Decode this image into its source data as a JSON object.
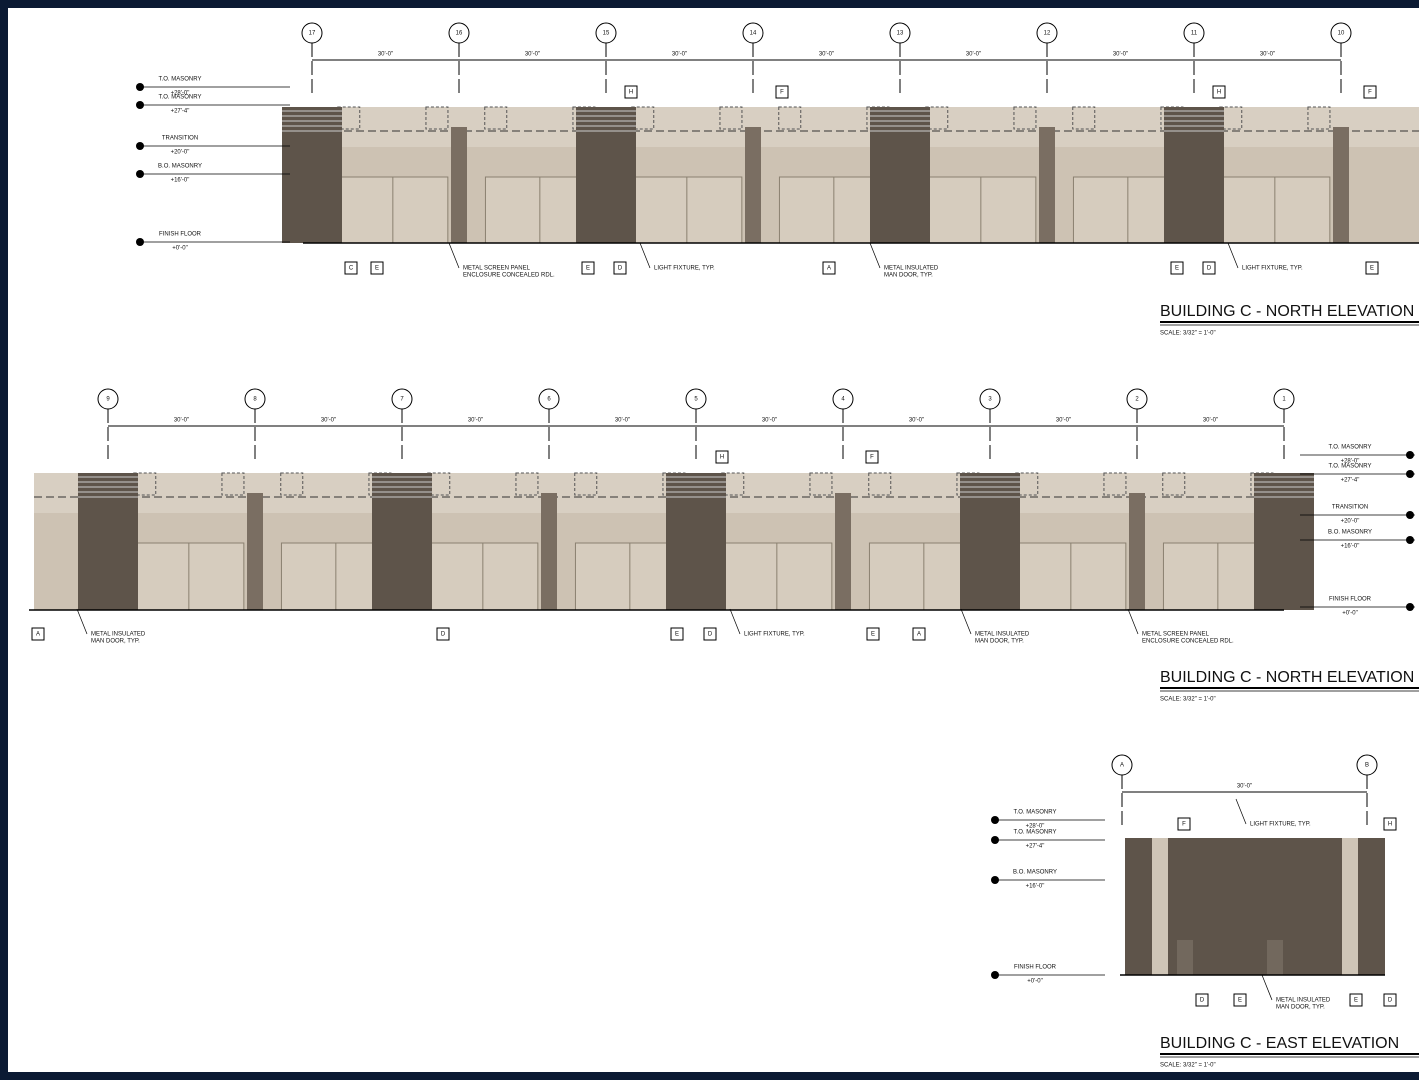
{
  "drawings": [
    {
      "title": "BUILDING C - NORTH ELEVATION",
      "scale": "SCALE: 3/32\" = 1'-0\"",
      "grid_labels": [
        "17",
        "16",
        "15",
        "14",
        "13",
        "12",
        "11",
        "10"
      ],
      "dimensions": [
        "30'-0\"",
        "30'-0\"",
        "30'-0\"",
        "30'-0\"",
        "30'-0\"",
        "30'-0\"",
        "30'-0\""
      ],
      "levels": [
        {
          "name": "T.O. MASONRY",
          "elevation": "+28'-0\""
        },
        {
          "name": "T.O. MASONRY",
          "elevation": "+27'-4\""
        },
        {
          "name": "TRANSITION",
          "elevation": "+20'-0\""
        },
        {
          "name": "B.O. MASONRY",
          "elevation": "+16'-0\""
        },
        {
          "name": "FINISH FLOOR",
          "elevation": "+0'-0\""
        }
      ],
      "keynotes": [
        "H",
        "F",
        "H",
        "F",
        "C",
        "E",
        "E",
        "D",
        "A",
        "E",
        "D",
        "E"
      ],
      "callouts": [
        [
          "METAL SCREEN PANEL",
          "ENCLOSURE CONCEALED RDL."
        ],
        [
          "LIGHT FIXTURE, TYP."
        ],
        [
          "METAL INSULATED",
          "MAN DOOR, TYP."
        ],
        [
          "LIGHT FIXTURE, TYP."
        ]
      ]
    },
    {
      "title": "BUILDING C - NORTH ELEVATION",
      "scale": "SCALE: 3/32\" = 1'-0\"",
      "grid_labels": [
        "9",
        "8",
        "7",
        "6",
        "5",
        "4",
        "3",
        "2",
        "1"
      ],
      "dimensions": [
        "30'-0\"",
        "30'-0\"",
        "30'-0\"",
        "30'-0\"",
        "30'-0\"",
        "30'-0\"",
        "30'-0\"",
        "30'-0\""
      ],
      "levels": [
        {
          "name": "T.O. MASONRY",
          "elevation": "+28'-0\""
        },
        {
          "name": "T.O. MASONRY",
          "elevation": "+27'-4\""
        },
        {
          "name": "TRANSITION",
          "elevation": "+20'-0\""
        },
        {
          "name": "B.O. MASONRY",
          "elevation": "+16'-0\""
        },
        {
          "name": "FINISH FLOOR",
          "elevation": "+0'-0\""
        }
      ],
      "keynotes": [
        "H",
        "F",
        "A",
        "D",
        "E",
        "D",
        "E",
        "A"
      ],
      "callouts": [
        [
          "METAL INSULATED",
          "MAN DOOR, TYP."
        ],
        [
          "LIGHT FIXTURE, TYP."
        ],
        [
          "METAL INSULATED",
          "MAN DOOR, TYP."
        ],
        [
          "METAL SCREEN PANEL",
          "ENCLOSURE CONCEALED RDL."
        ]
      ]
    },
    {
      "title": "BUILDING C - EAST ELEVATION",
      "scale": "SCALE: 3/32\" = 1'-0\"",
      "grid_labels": [
        "A",
        "B"
      ],
      "dimensions": [
        "30'-0\""
      ],
      "levels": [
        {
          "name": "T.O. MASONRY",
          "elevation": "+28'-0\""
        },
        {
          "name": "T.O. MASONRY",
          "elevation": "+27'-4\""
        },
        {
          "name": "B.O. MASONRY",
          "elevation": "+16'-0\""
        },
        {
          "name": "FINISH FLOOR",
          "elevation": "+0'-0\""
        }
      ],
      "keynotes": [
        "F",
        "H",
        "D",
        "E",
        "E",
        "D"
      ],
      "callouts": [
        [
          "LIGHT FIXTURE, TYP."
        ],
        [
          "METAL INSULATED",
          "MAN DOOR, TYP."
        ]
      ]
    }
  ]
}
